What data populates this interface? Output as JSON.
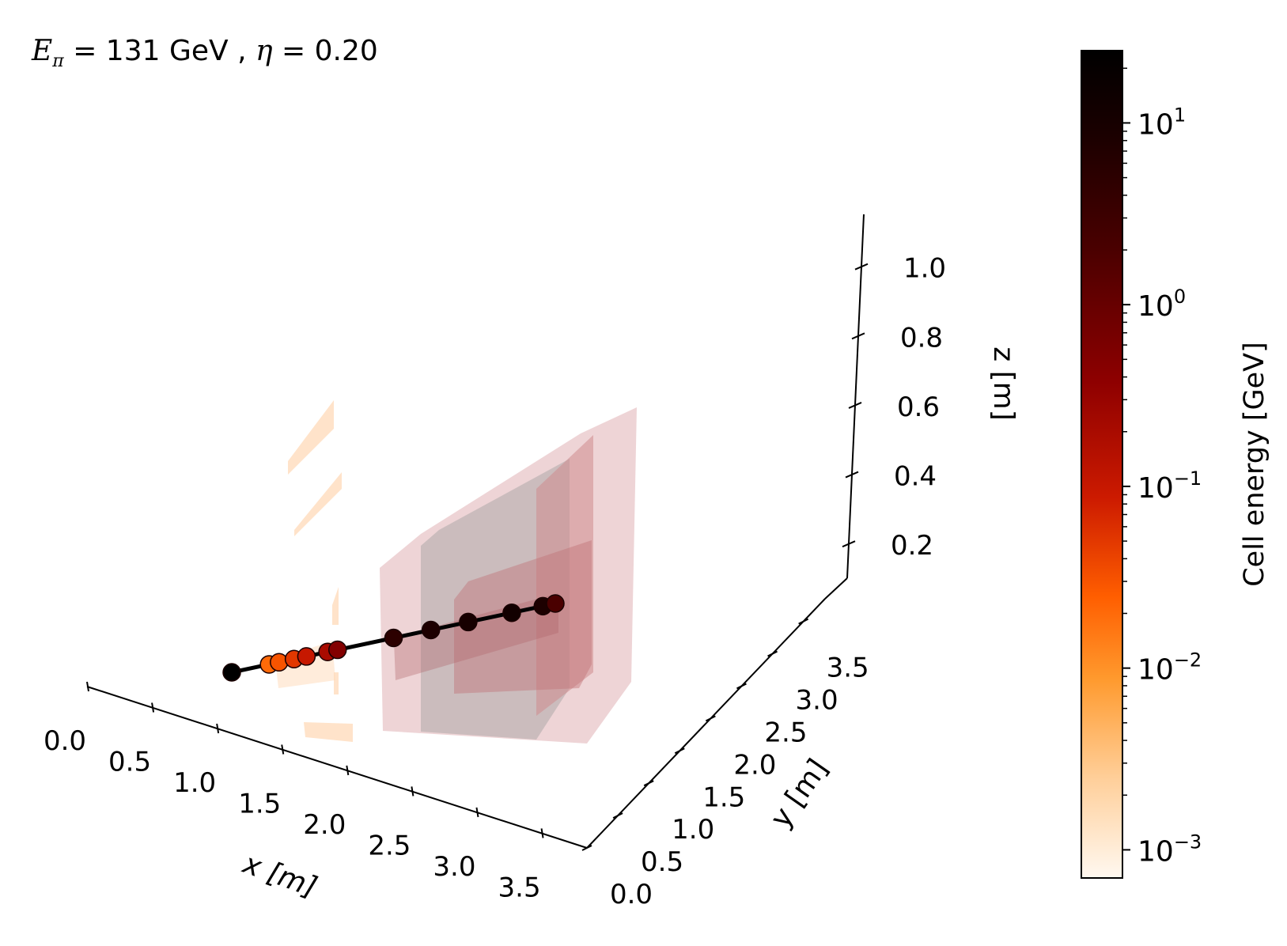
{
  "title": {
    "e_symbol": "E",
    "e_sub": "π",
    "e_value": "= 131 GeV ,",
    "eta_symbol": "η",
    "eta_value": "= 0.20"
  },
  "chart_data": {
    "type": "scatter",
    "projection": "3d",
    "x_axis": {
      "label": "x [m]",
      "ticks": [
        "0.0",
        "0.5",
        "1.0",
        "1.5",
        "2.0",
        "2.5",
        "3.0",
        "3.5"
      ],
      "range": [
        0,
        3.8
      ]
    },
    "y_axis": {
      "label": "y [m]",
      "ticks": [
        "0.0",
        "0.5",
        "1.0",
        "1.5",
        "2.0",
        "2.5",
        "3.0",
        "3.5"
      ],
      "range": [
        0,
        3.8
      ]
    },
    "z_axis": {
      "label": "z [m]",
      "ticks": [
        "0.2",
        "0.4",
        "0.6",
        "0.8",
        "1.0"
      ],
      "range": [
        0.1,
        1.15
      ]
    },
    "colorbar": {
      "label": "Cell energy [GeV]",
      "scale": "log",
      "range": [
        0.0007,
        25
      ],
      "ticks": [
        {
          "base": "10",
          "exp": "1",
          "value": 10
        },
        {
          "base": "10",
          "exp": "0",
          "value": 1
        },
        {
          "base": "10",
          "exp": "−1",
          "value": 0.1
        },
        {
          "base": "10",
          "exp": "−2",
          "value": 0.01
        },
        {
          "base": "10",
          "exp": "−3",
          "value": 0.001
        }
      ],
      "colors": [
        "#fff8f0",
        "#ffcf9a",
        "#ff9a2e",
        "#ff5e00",
        "#cc1a00",
        "#8e0000",
        "#4a0000",
        "#1a0000",
        "#000000"
      ]
    },
    "track_points": [
      {
        "x": 0.95,
        "y": 1.17,
        "z": 0.05,
        "energy": 25
      },
      {
        "x": 1.25,
        "y": 1.5,
        "z": 0.08,
        "energy": 0.02
      },
      {
        "x": 1.33,
        "y": 1.58,
        "z": 0.09,
        "energy": 0.03
      },
      {
        "x": 1.45,
        "y": 1.66,
        "z": 0.09,
        "energy": 0.05
      },
      {
        "x": 1.55,
        "y": 1.8,
        "z": 0.1,
        "energy": 0.1
      },
      {
        "x": 1.72,
        "y": 1.95,
        "z": 0.11,
        "energy": 0.2
      },
      {
        "x": 1.8,
        "y": 2.04,
        "z": 0.12,
        "energy": 0.5
      },
      {
        "x": 2.25,
        "y": 2.48,
        "z": 0.15,
        "energy": 5
      },
      {
        "x": 2.55,
        "y": 2.8,
        "z": 0.16,
        "energy": 8
      },
      {
        "x": 2.85,
        "y": 3.12,
        "z": 0.18,
        "energy": 10
      },
      {
        "x": 3.2,
        "y": 3.48,
        "z": 0.19,
        "energy": 12
      },
      {
        "x": 3.45,
        "y": 3.72,
        "z": 0.2,
        "energy": 8
      },
      {
        "x": 3.55,
        "y": 3.82,
        "z": 0.21,
        "energy": 2
      }
    ]
  }
}
